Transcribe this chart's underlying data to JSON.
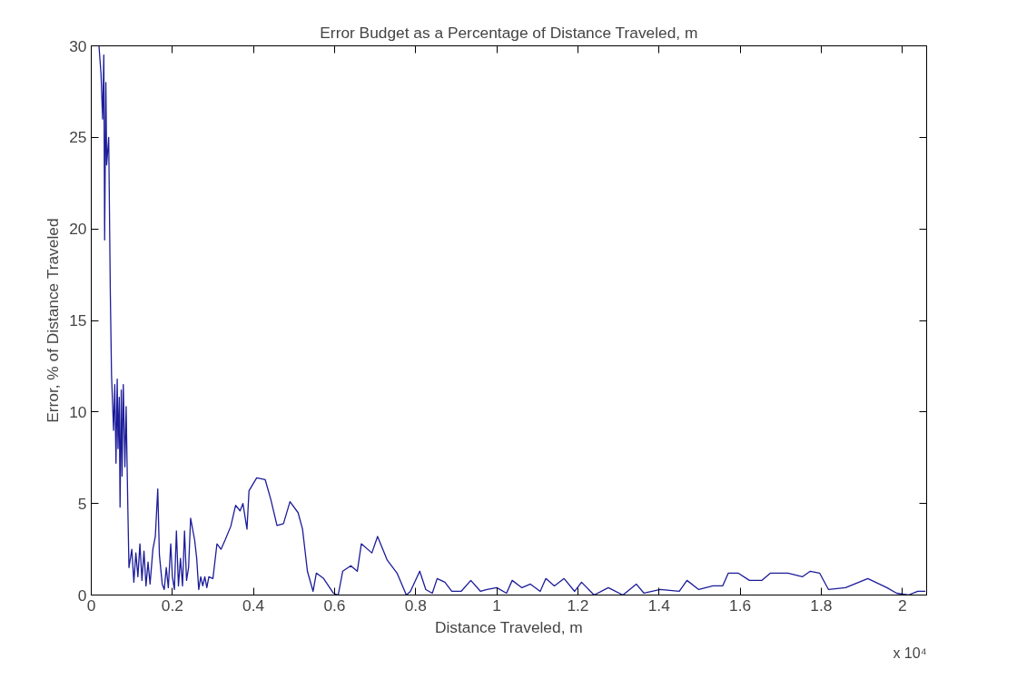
{
  "chart_data": {
    "type": "line",
    "title": "Error Budget as a Percentage of Distance Traveled, m",
    "xlabel": "Distance Traveled, m",
    "ylabel": "Error, % of Distance Traveled",
    "annotations": [
      "x 10⁴"
    ],
    "xlim": [
      0,
      2.06
    ],
    "ylim": [
      0,
      30
    ],
    "xticks": [
      0,
      0.2,
      0.4,
      0.6,
      0.8,
      1,
      1.2,
      1.4,
      1.6,
      1.8,
      2
    ],
    "yticks": [
      0,
      5,
      10,
      15,
      20,
      25,
      30
    ],
    "grid": false,
    "marker": "none",
    "line_style": "solid",
    "series": [
      {
        "color": "#1c1c9a",
        "x": [
          0.019,
          0.024,
          0.028,
          0.031,
          0.033,
          0.036,
          0.038,
          0.043,
          0.047,
          0.05,
          0.055,
          0.058,
          0.061,
          0.064,
          0.066,
          0.069,
          0.071,
          0.074,
          0.076,
          0.079,
          0.083,
          0.086,
          0.09,
          0.093,
          0.1,
          0.105,
          0.11,
          0.115,
          0.12,
          0.125,
          0.13,
          0.135,
          0.14,
          0.145,
          0.152,
          0.158,
          0.164,
          0.168,
          0.175,
          0.18,
          0.185,
          0.19,
          0.196,
          0.2,
          0.205,
          0.21,
          0.215,
          0.22,
          0.225,
          0.23,
          0.235,
          0.24,
          0.245,
          0.255,
          0.26,
          0.265,
          0.27,
          0.275,
          0.28,
          0.285,
          0.29,
          0.3,
          0.31,
          0.32,
          0.33,
          0.344,
          0.356,
          0.367,
          0.374,
          0.384,
          0.389,
          0.408,
          0.429,
          0.443,
          0.458,
          0.474,
          0.49,
          0.51,
          0.521,
          0.533,
          0.547,
          0.555,
          0.573,
          0.597,
          0.609,
          0.62,
          0.64,
          0.656,
          0.666,
          0.692,
          0.706,
          0.73,
          0.754,
          0.777,
          0.787,
          0.81,
          0.825,
          0.841,
          0.853,
          0.872,
          0.889,
          0.912,
          0.936,
          0.96,
          0.976,
          1.0,
          1.024,
          1.038,
          1.062,
          1.083,
          1.107,
          1.121,
          1.142,
          1.166,
          1.192,
          1.209,
          1.24,
          1.275,
          1.311,
          1.344,
          1.363,
          1.403,
          1.45,
          1.469,
          1.498,
          1.533,
          1.557,
          1.571,
          1.595,
          1.623,
          1.654,
          1.675,
          1.718,
          1.754,
          1.773,
          1.796,
          1.818,
          1.86,
          1.915,
          1.962,
          1.986,
          2.015,
          2.038,
          2.057
        ],
        "values": [
          30,
          28.5,
          26,
          29.5,
          19.4,
          28,
          23.5,
          25,
          16.5,
          12.0,
          9,
          11.5,
          7.2,
          11.8,
          8,
          10.8,
          4.8,
          11.2,
          6.5,
          11.5,
          7,
          10.3,
          5,
          1.5,
          2.5,
          0.7,
          2.3,
          1,
          2.8,
          0.8,
          2.4,
          0.5,
          1.8,
          0.6,
          2.5,
          3.2,
          5.8,
          2.2,
          0.6,
          0.3,
          1.5,
          0.4,
          2.8,
          1,
          0.3,
          3.5,
          0.5,
          2,
          0.5,
          3.5,
          0.8,
          1.5,
          4.2,
          3,
          2,
          0.3,
          1,
          0.5,
          1,
          0.4,
          1,
          0.9,
          2.8,
          2.5,
          3.0,
          3.75,
          4.9,
          4.6,
          5.0,
          3.6,
          5.7,
          6.4,
          6.3,
          5.2,
          3.8,
          3.9,
          5.1,
          4.5,
          3.6,
          1.3,
          0.2,
          1.2,
          0.9,
          0.1,
          0.0,
          1.3,
          1.6,
          1.3,
          2.8,
          2.3,
          3.2,
          1.9,
          1.2,
          0.0,
          0.2,
          1.3,
          0.3,
          0.1,
          0.9,
          0.7,
          0.2,
          0.2,
          0.8,
          0.2,
          0.3,
          0.4,
          0.1,
          0.8,
          0.4,
          0.6,
          0.2,
          0.9,
          0.5,
          0.9,
          0.2,
          0.7,
          0.0,
          0.4,
          0.0,
          0.6,
          0.1,
          0.3,
          0.2,
          0.8,
          0.3,
          0.5,
          0.5,
          1.2,
          1.2,
          0.8,
          0.8,
          1.2,
          1.2,
          1.0,
          1.3,
          1.2,
          0.3,
          0.4,
          0.9,
          0.4,
          0.1,
          0.0,
          0.2,
          0.2
        ]
      }
    ]
  }
}
